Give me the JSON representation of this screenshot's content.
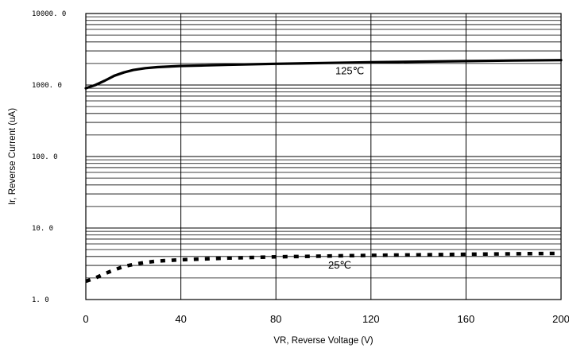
{
  "chart_data": {
    "type": "line",
    "title": "",
    "xlabel": "VR, Reverse Voltage (V)",
    "ylabel": "Ir, Reverse Current (uA)",
    "xlim": [
      0,
      200
    ],
    "ylim": [
      1,
      10000
    ],
    "y_scale": "log",
    "grid": true,
    "x_ticks": [
      0,
      40,
      80,
      120,
      160,
      200
    ],
    "x_tick_labels": [
      "0",
      "40",
      "80",
      "120",
      "160",
      "200"
    ],
    "y_ticks": [
      1,
      10,
      100,
      1000,
      10000
    ],
    "y_tick_labels": [
      "1. 0",
      "10. 0",
      "100. 0",
      "1000. 0",
      "10000. 0"
    ],
    "series": [
      {
        "name": "125℃",
        "style": "solid",
        "x": [
          0,
          4,
          8,
          12,
          16,
          20,
          25,
          30,
          40,
          50,
          60,
          80,
          100,
          120,
          140,
          160,
          180,
          200
        ],
        "y": [
          900,
          1000,
          1150,
          1350,
          1500,
          1620,
          1720,
          1780,
          1850,
          1880,
          1920,
          1980,
          2030,
          2080,
          2120,
          2160,
          2200,
          2230
        ]
      },
      {
        "name": "25℃",
        "style": "dotted",
        "x": [
          0,
          4,
          8,
          12,
          16,
          20,
          25,
          30,
          40,
          50,
          60,
          80,
          100,
          120,
          140,
          160,
          180,
          200
        ],
        "y": [
          1.8,
          2.0,
          2.3,
          2.6,
          2.9,
          3.1,
          3.3,
          3.45,
          3.6,
          3.7,
          3.8,
          3.95,
          4.05,
          4.15,
          4.22,
          4.3,
          4.36,
          4.42
        ]
      }
    ],
    "annotations": [
      {
        "text": "125℃",
        "x": 105,
        "y": 1420
      },
      {
        "text": "25℃",
        "x": 102,
        "y": 2.7
      }
    ]
  }
}
